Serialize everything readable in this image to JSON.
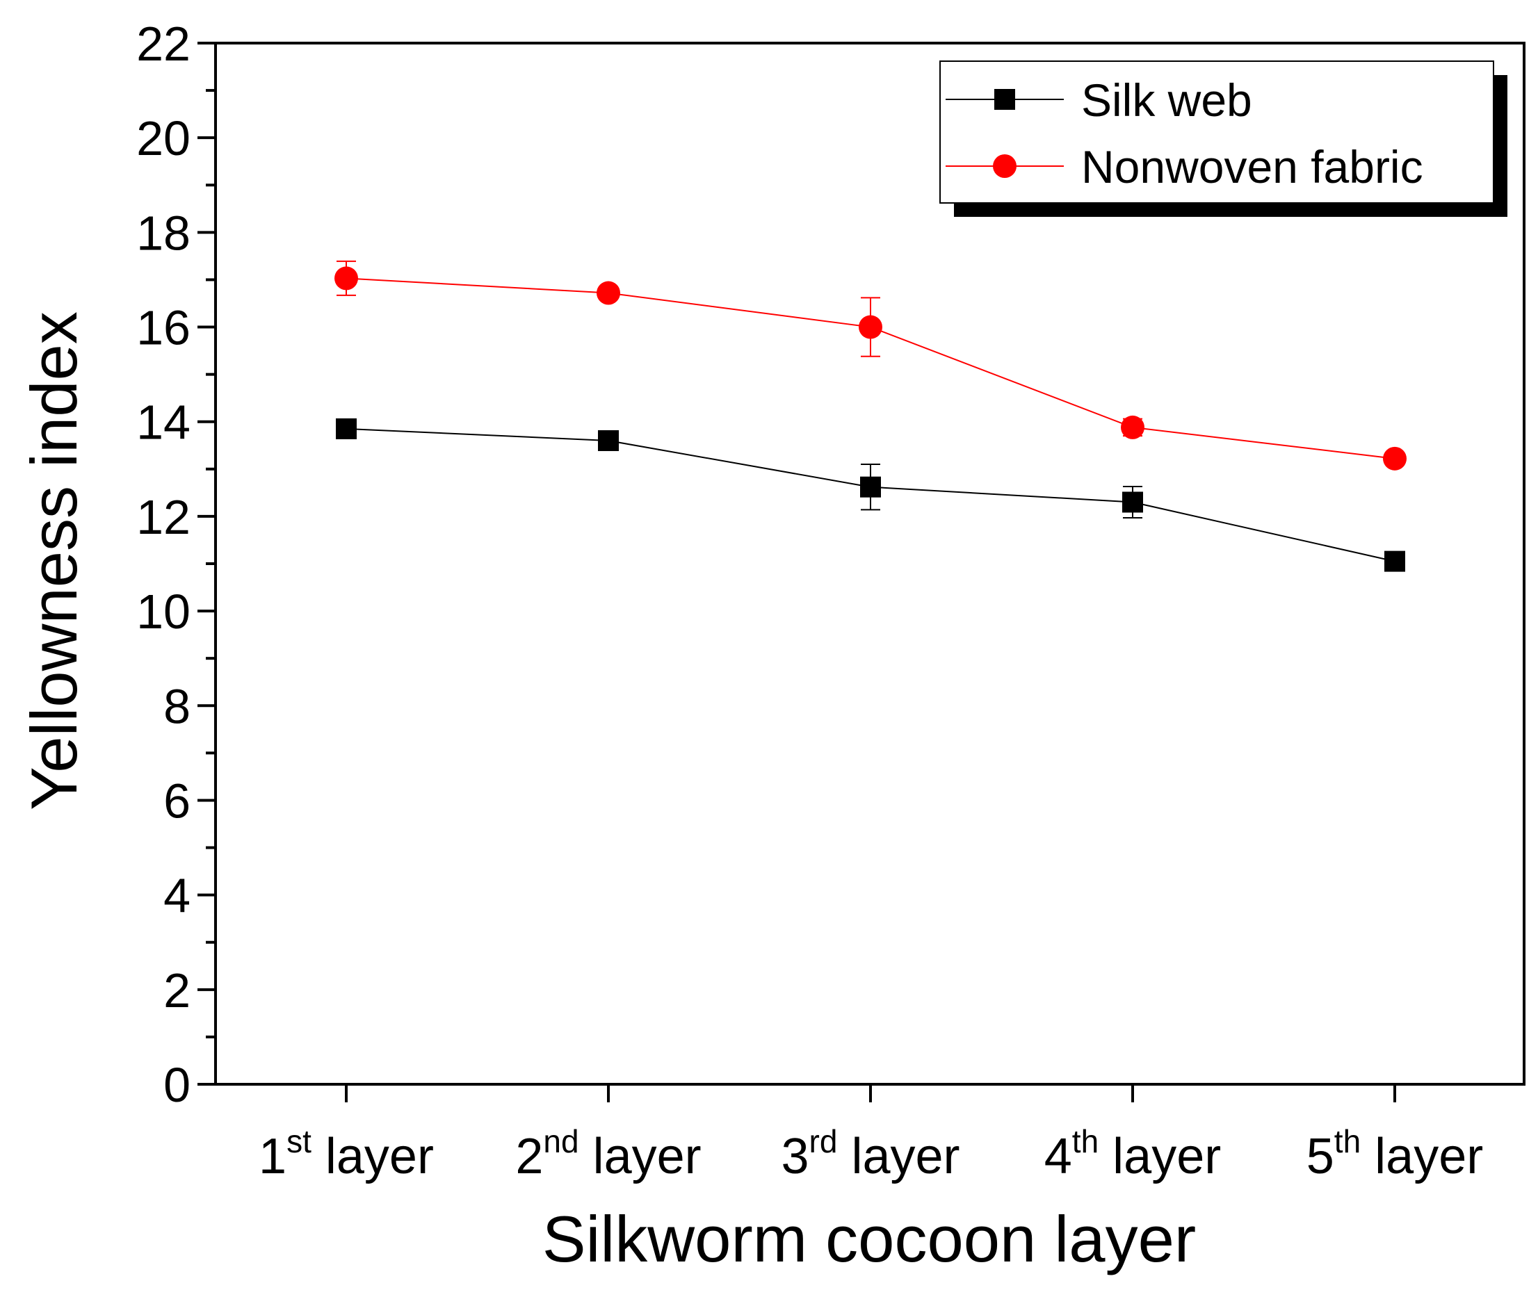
{
  "chart_data": {
    "type": "line",
    "xlabel": "Silkworm cocoon layer",
    "ylabel": "Yellowness index",
    "ylim": [
      0,
      22
    ],
    "yticks": [
      0,
      2,
      4,
      6,
      8,
      10,
      12,
      14,
      16,
      18,
      20,
      22
    ],
    "categories": [
      {
        "num": "1",
        "sup": "st",
        "rest": " layer"
      },
      {
        "num": "2",
        "sup": "nd",
        "rest": " layer"
      },
      {
        "num": "3",
        "sup": "rd",
        "rest": " layer"
      },
      {
        "num": "4",
        "sup": "th",
        "rest": " layer"
      },
      {
        "num": "5",
        "sup": "th",
        "rest": " layer"
      }
    ],
    "series": [
      {
        "name": "Silk web",
        "color": "#000000",
        "marker": "square",
        "values": [
          13.85,
          13.6,
          12.62,
          12.3,
          11.05
        ],
        "errors": [
          0.12,
          0.2,
          0.48,
          0.33,
          0.1
        ]
      },
      {
        "name": "Nonwoven fabric",
        "color": "#ff0000",
        "marker": "circle",
        "values": [
          17.03,
          16.72,
          16.0,
          13.88,
          13.22
        ],
        "errors": [
          0.36,
          0.12,
          0.62,
          0.18,
          0.1
        ]
      }
    ],
    "legend": "top-right"
  }
}
